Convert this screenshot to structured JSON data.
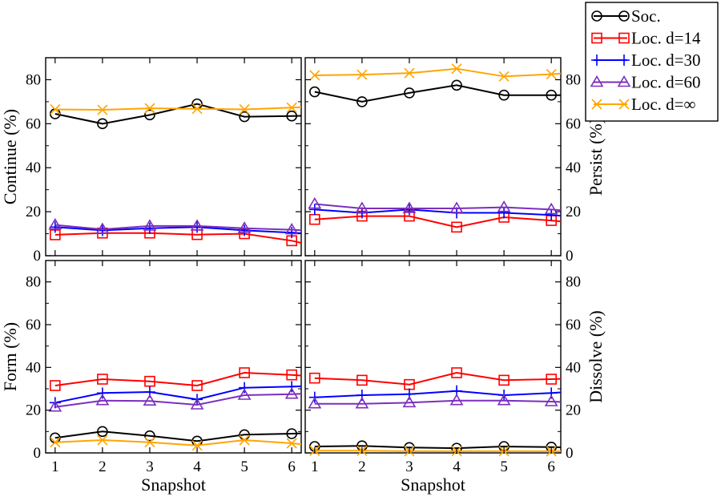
{
  "chart_data": {
    "type": "line",
    "layout": "2x2 grid, shared x axis per column, y ticks on outer sides",
    "x": [
      1,
      2,
      3,
      4,
      5,
      6
    ],
    "xlabel": "Snapshot",
    "xlim": [
      0.8,
      6.2
    ],
    "ylim": [
      0,
      90
    ],
    "yticks": [
      0,
      20,
      40,
      60,
      80
    ],
    "grid": false,
    "legend_position": "top-right, outside panels",
    "series": [
      {
        "name": "Soc.",
        "color": "#000000",
        "marker": "circle"
      },
      {
        "name": "Loc. d=14",
        "color": "#ff0000",
        "marker": "square"
      },
      {
        "name": "Loc. d=30",
        "color": "#0000ff",
        "marker": "plus"
      },
      {
        "name": "Loc. d=60",
        "color": "#7b2fbe",
        "marker": "triangle"
      },
      {
        "name": "Loc. d=∞",
        "color": "#ffa500",
        "marker": "x"
      }
    ],
    "panels": [
      {
        "ylabel": "Continue (%)",
        "ylabel_side": "left",
        "values": [
          [
            64.5,
            60,
            64,
            69,
            63.2,
            63.5
          ],
          [
            9.5,
            10.3,
            10.3,
            9.6,
            10,
            6.8
          ],
          [
            13,
            11.5,
            12.5,
            13,
            11.5,
            10.5
          ],
          [
            14,
            12,
            13.5,
            13.5,
            12.5,
            11.8
          ],
          [
            66.5,
            66.3,
            67,
            66.8,
            66.5,
            67.3
          ]
        ]
      },
      {
        "ylabel": "Persist (%)",
        "ylabel_side": "right",
        "values": [
          [
            74.5,
            70,
            74,
            77.5,
            73,
            73
          ],
          [
            16.5,
            18,
            18,
            13,
            17.5,
            16
          ],
          [
            21,
            19.5,
            21,
            19.5,
            19.5,
            18.5
          ],
          [
            23.5,
            21.5,
            21.5,
            21.5,
            22,
            21
          ],
          [
            82,
            82.3,
            83,
            85,
            81.5,
            82.5
          ]
        ]
      },
      {
        "ylabel": "Form (%)",
        "ylabel_side": "left",
        "values": [
          [
            7,
            10,
            8,
            5.5,
            8.5,
            9
          ],
          [
            31.5,
            34.5,
            33.5,
            31.5,
            37.5,
            36.5
          ],
          [
            23.5,
            28,
            28.5,
            25,
            30.5,
            31
          ],
          [
            21.5,
            24.5,
            24.3,
            22.5,
            27,
            27.5
          ],
          [
            5,
            6,
            5,
            3.5,
            6,
            4.5
          ]
        ]
      },
      {
        "ylabel": "Dissolve (%)",
        "ylabel_side": "right",
        "values": [
          [
            3,
            3.3,
            2.5,
            2.2,
            3,
            2.7
          ],
          [
            35,
            34,
            32,
            37.5,
            34,
            34.5
          ],
          [
            26,
            27,
            27.5,
            29,
            27,
            28
          ],
          [
            23,
            23,
            23.5,
            24.5,
            24.5,
            24
          ],
          [
            1,
            1,
            0.8,
            0.8,
            0.8,
            0.8
          ]
        ]
      }
    ]
  }
}
